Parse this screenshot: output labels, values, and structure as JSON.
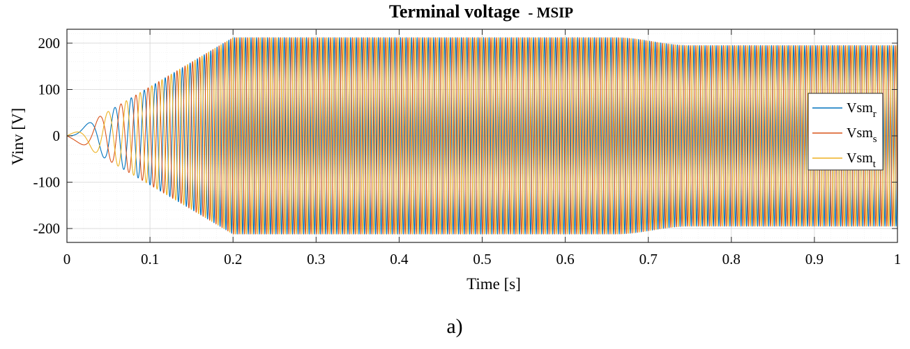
{
  "chart_data": {
    "type": "line",
    "title": "Terminal voltage",
    "subtitle": "- MSIP",
    "xlabel": "Time [s]",
    "ylabel": "Vinv [V]",
    "xlim": [
      0,
      1
    ],
    "ylim": [
      -230,
      230
    ],
    "x_ticks": [
      0,
      0.1,
      0.2,
      0.3,
      0.4,
      0.5,
      0.6,
      0.7,
      0.8,
      0.9,
      1
    ],
    "x_tick_labels": [
      "0",
      "0.1",
      "0.2",
      "0.3",
      "0.4",
      "0.5",
      "0.6",
      "0.7",
      "0.8",
      "0.9",
      "1"
    ],
    "y_ticks": [
      -200,
      -100,
      0,
      100,
      200
    ],
    "y_tick_labels": [
      "-200",
      "-100",
      "0",
      "100",
      "200"
    ],
    "grid": true,
    "minor_grid": true,
    "legend_position": "right",
    "waveform": {
      "frequency_ramp_end_s": 0.2,
      "final_frequency_hz": 150,
      "amplitude_envelope": [
        {
          "t": 0.0,
          "amp": 0
        },
        {
          "t": 0.2,
          "amp": 212
        },
        {
          "t": 0.66,
          "amp": 212
        },
        {
          "t": 0.75,
          "amp": 195
        },
        {
          "t": 1.0,
          "amp": 195
        }
      ]
    },
    "series": [
      {
        "name": "Vsm",
        "subscript": "r",
        "color": "#0072BD",
        "phase_deg": 0
      },
      {
        "name": "Vsm",
        "subscript": "s",
        "color": "#D95319",
        "phase_deg": -120
      },
      {
        "name": "Vsm",
        "subscript": "t",
        "color": "#EDB120",
        "phase_deg": 120
      }
    ]
  },
  "panel_label": "a)"
}
